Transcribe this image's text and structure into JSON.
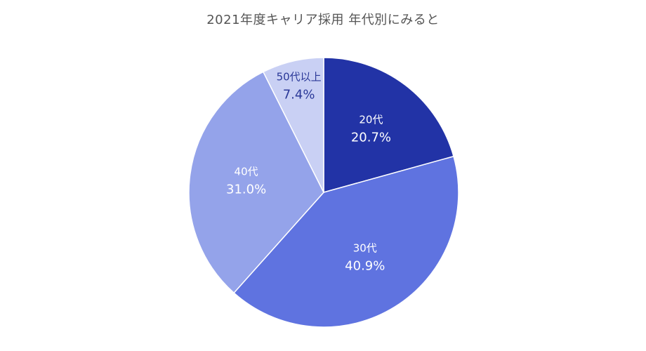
{
  "chart_data": {
    "type": "pie",
    "title": "2021年度キャリア採用 年代別にみると",
    "slices": [
      {
        "label": "20代",
        "value": 20.7,
        "display": "20.7%",
        "color": "#2233a6",
        "text_color": "#ffffff"
      },
      {
        "label": "30代",
        "value": 40.9,
        "display": "40.9%",
        "color": "#5f73e0",
        "text_color": "#ffffff"
      },
      {
        "label": "40代",
        "value": 31.0,
        "display": "31.0%",
        "color": "#94a3ea",
        "text_color": "#ffffff"
      },
      {
        "label": "50代以上",
        "value": 7.4,
        "display": "7.4%",
        "color": "#c9d0f4",
        "text_color": "#2a3898"
      }
    ],
    "start_angle": "12 o'clock",
    "direction": "clockwise"
  }
}
